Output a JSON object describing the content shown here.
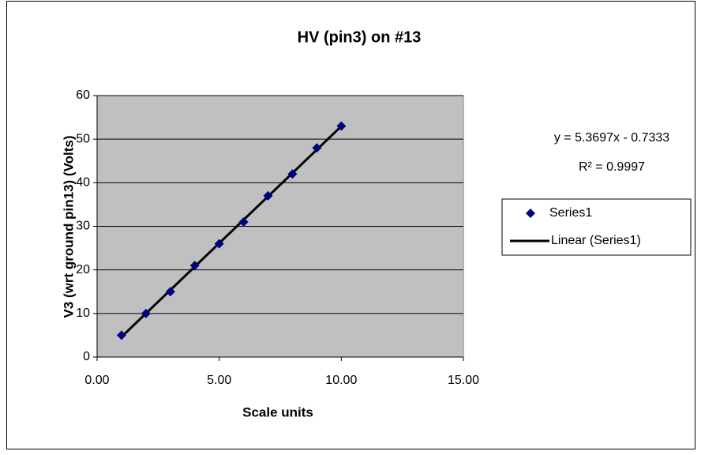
{
  "chart_data": {
    "type": "scatter",
    "title": "HV (pin3) on #13",
    "x_label": "Scale units",
    "y_label": "V3 (wrt ground pin13) (Volts)",
    "series": [
      {
        "name": "Series1",
        "color": "#000080",
        "x": [
          1,
          2,
          3,
          4,
          5,
          6,
          7,
          8,
          9,
          10
        ],
        "values": [
          5,
          10,
          15,
          21,
          26,
          31,
          37,
          42,
          48,
          53
        ]
      }
    ],
    "trendline": {
      "name": "Linear (Series1)",
      "color": "#000000",
      "equation": "y = 5.3697x - 0.7333",
      "r_squared": "R² = 0.9997"
    },
    "xlim": [
      0,
      15
    ],
    "xticks": [
      {
        "value": 0,
        "label": "0.00"
      },
      {
        "value": 5,
        "label": "5.00"
      },
      {
        "value": 10,
        "label": "10.00"
      },
      {
        "value": 15,
        "label": "15.00"
      }
    ],
    "ylim": [
      0,
      60
    ],
    "yticks": [
      0,
      10,
      20,
      30,
      40,
      50,
      60
    ],
    "grid": true,
    "plot_background": "#c0c0c0",
    "legend": "right"
  }
}
